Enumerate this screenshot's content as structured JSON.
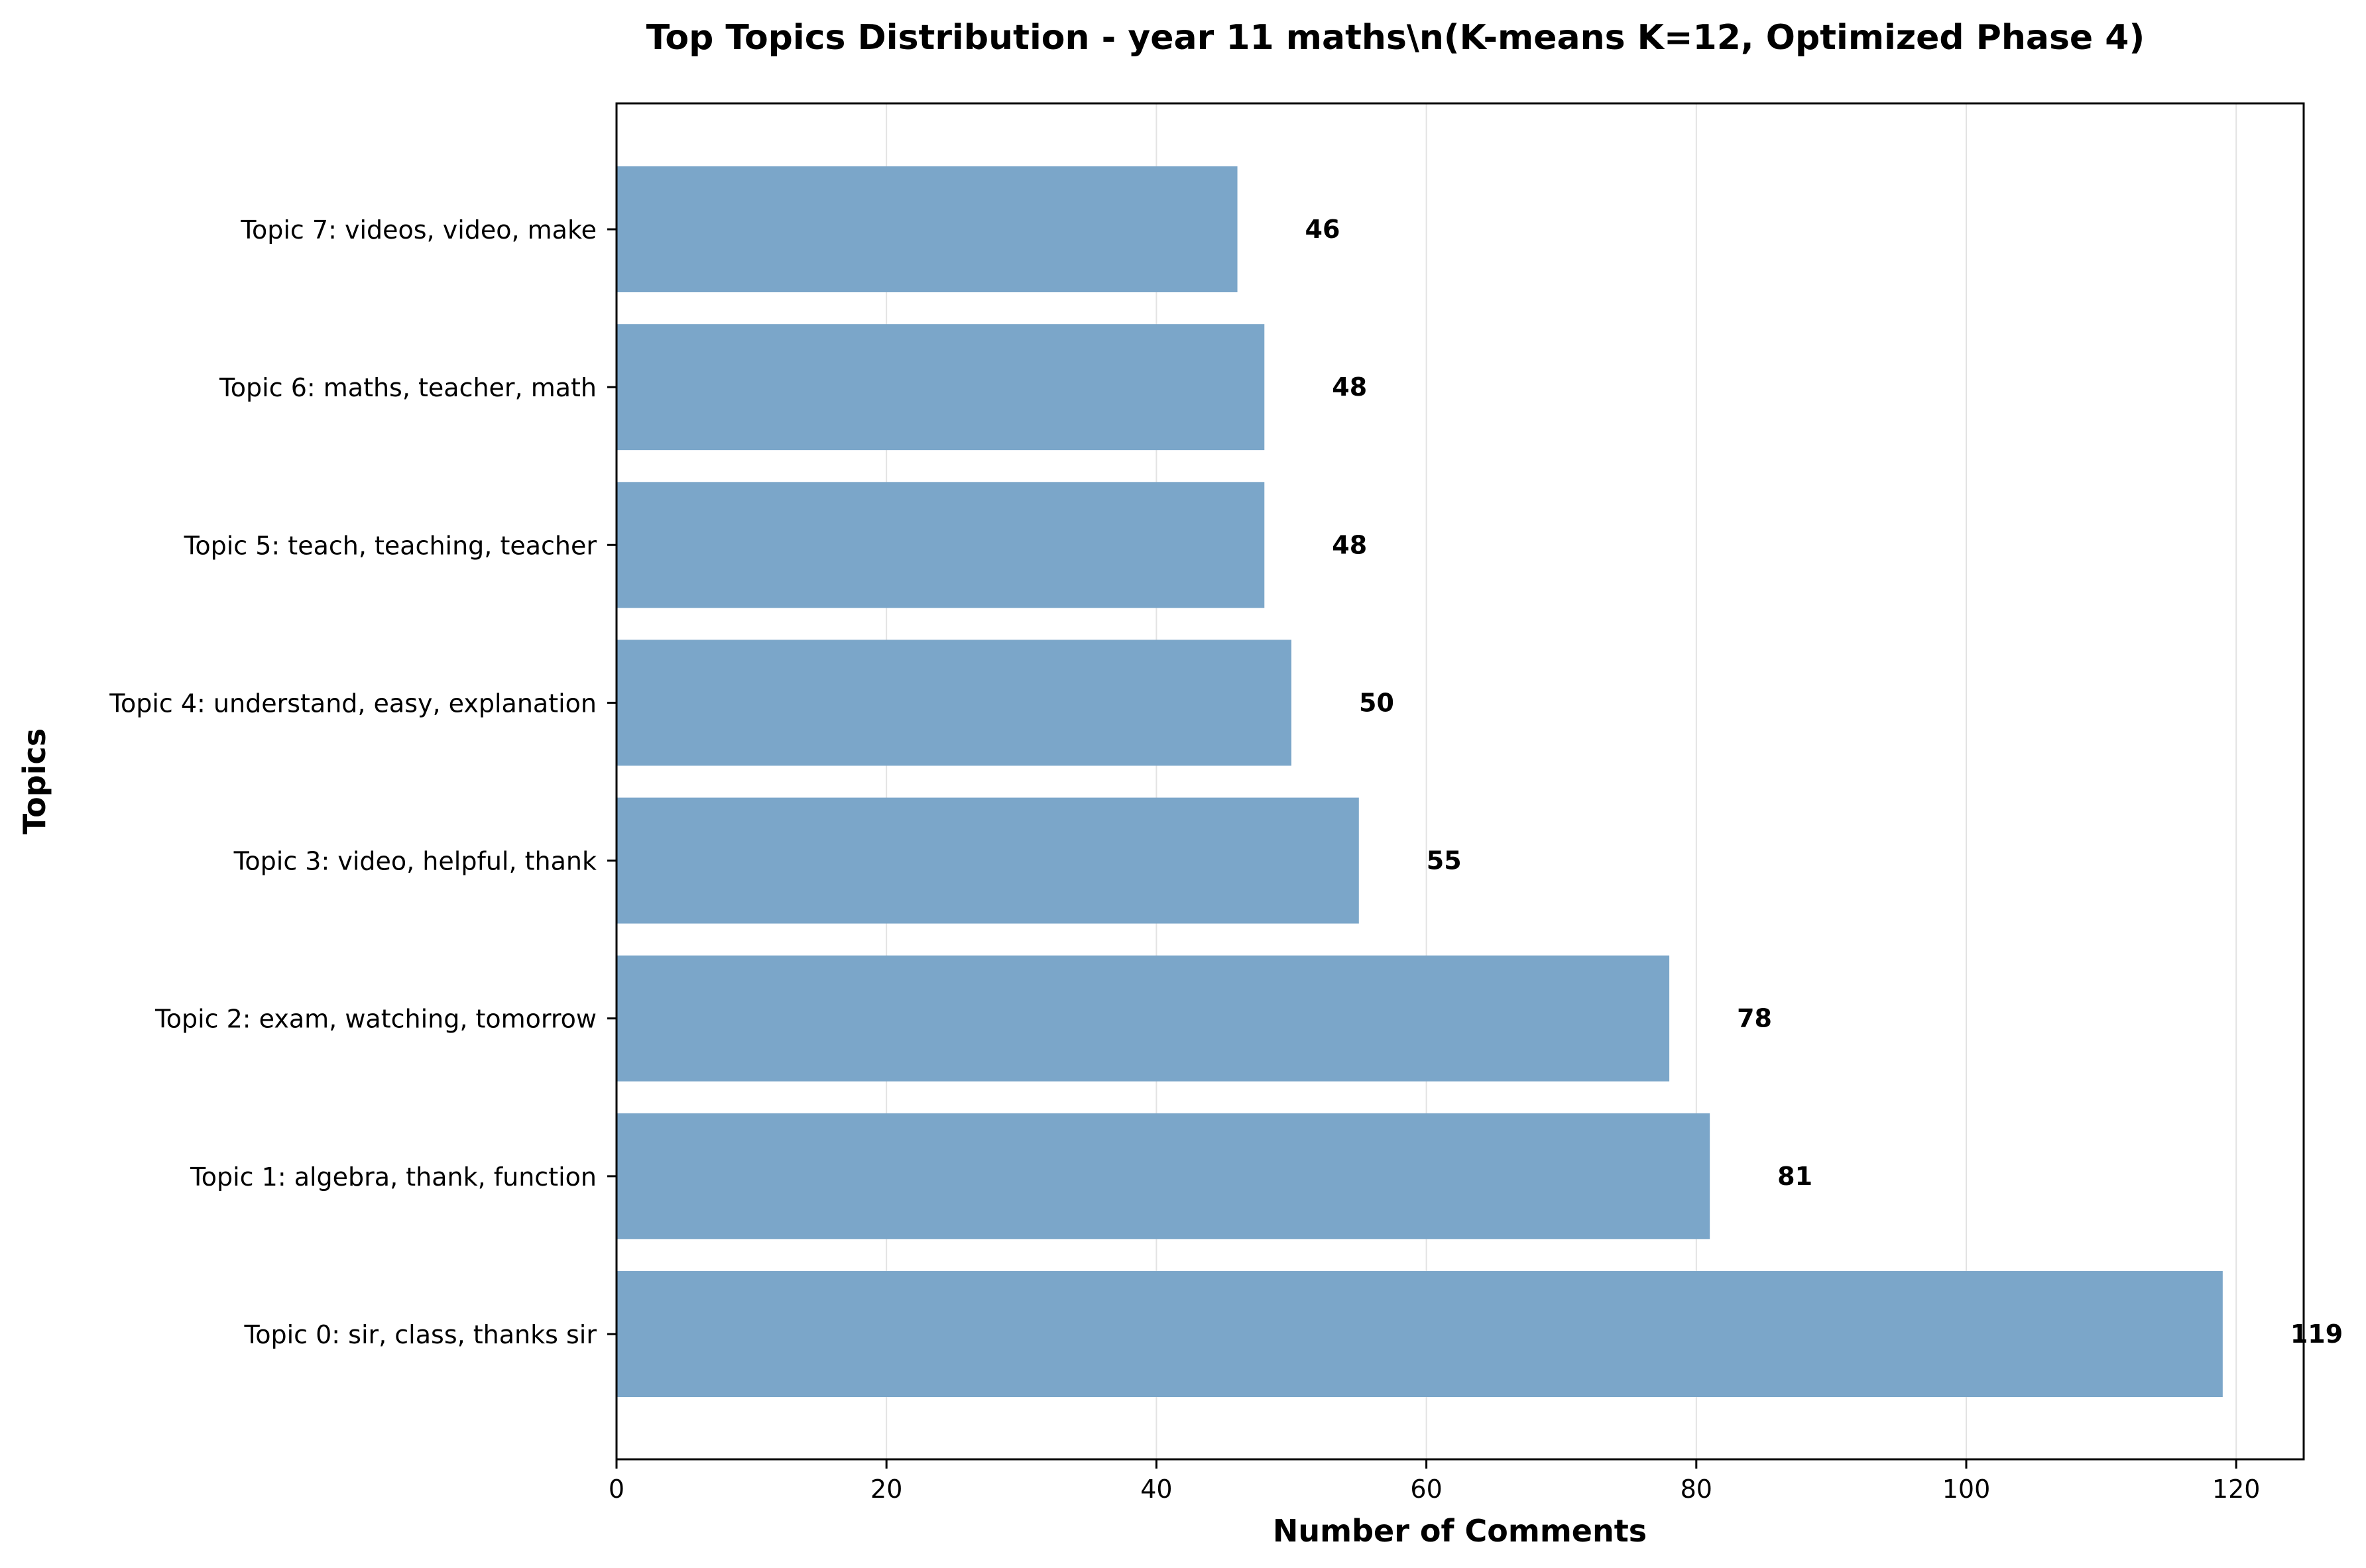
{
  "chart_data": {
    "type": "bar",
    "orientation": "horizontal",
    "title_line1": "Top Topics Distribution - year 11 maths\\n(K-means K=12, Optimized Phase 4)",
    "xlabel": "Number of Comments",
    "ylabel": "Topics",
    "categories": [
      "Topic 0: sir, class, thanks sir",
      "Topic 1: algebra, thank, function",
      "Topic 2: exam, watching, tomorrow",
      "Topic 3: video, helpful, thank",
      "Topic 4: understand, easy, explanation",
      "Topic 5: teach, teaching, teacher",
      "Topic 6: maths, teacher, math",
      "Topic 7: videos, video, make"
    ],
    "values": [
      119,
      81,
      78,
      55,
      50,
      48,
      48,
      46
    ],
    "xlim": [
      0,
      125
    ],
    "xticks": [
      0,
      20,
      40,
      60,
      80,
      100,
      120
    ],
    "grid": "vertical",
    "bar_color": "#7ba6c9"
  }
}
